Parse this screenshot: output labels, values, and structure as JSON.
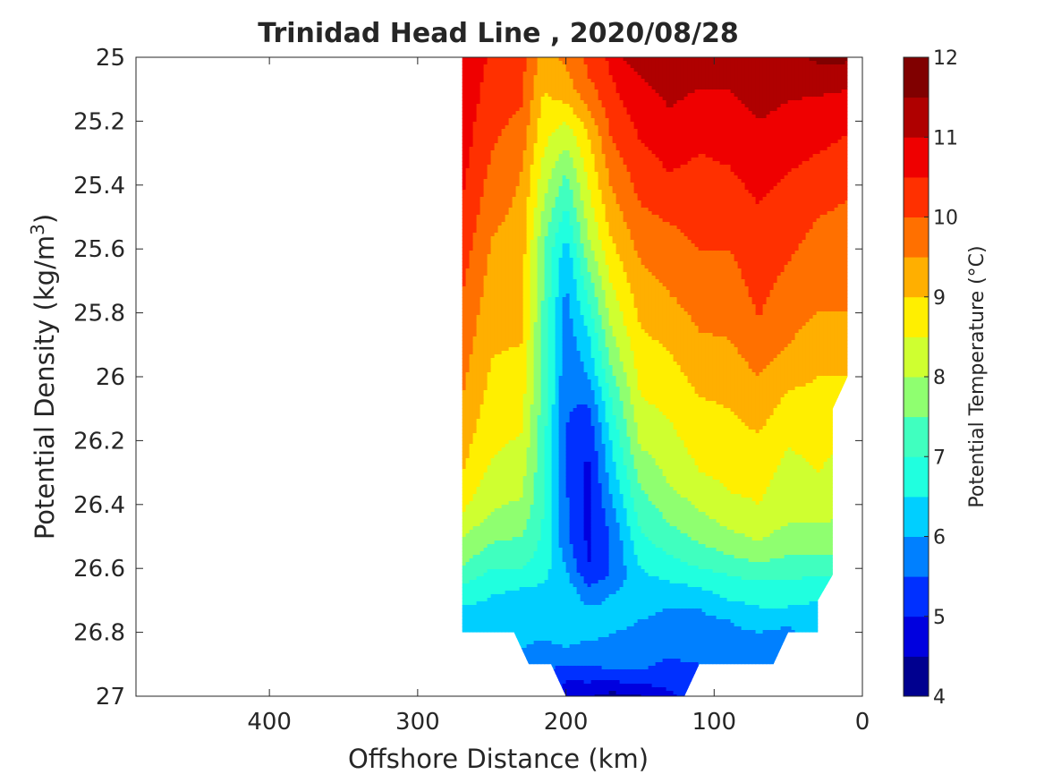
{
  "chart_data": {
    "type": "heatmap",
    "subtype": "filled-contour",
    "title": "Trinidad Head Line , 2020/08/28",
    "xlabel": "Offshore Distance (km)",
    "ylabel_main": "Potential Density (kg/m",
    "ylabel_sup": "3",
    "ylabel_end": ")",
    "colorbar_label": "Potential Temperature (°C)",
    "xlim": [
      490,
      0
    ],
    "x_reversed": true,
    "ylim": [
      25,
      27
    ],
    "y_reversed": true,
    "x_ticks": [
      400,
      300,
      200,
      100,
      0
    ],
    "x_tick_labels": [
      "400",
      "300",
      "200",
      "100",
      "0"
    ],
    "y_ticks": [
      25,
      25.2,
      25.4,
      25.6,
      25.8,
      26,
      26.2,
      26.4,
      26.6,
      26.8,
      27
    ],
    "y_tick_labels": [
      "25",
      "25.2",
      "25.4",
      "25.6",
      "25.8",
      "26",
      "26.2",
      "26.4",
      "26.6",
      "26.8",
      "27"
    ],
    "colorbar_range": [
      4,
      12
    ],
    "colorbar_ticks": [
      4,
      5,
      6,
      7,
      8,
      9,
      10,
      11,
      12
    ],
    "colorbar_tick_labels": [
      "4",
      "5",
      "6",
      "7",
      "8",
      "9",
      "10",
      "11",
      "12"
    ],
    "contour_levels": [
      4,
      4.5,
      5,
      5.5,
      6,
      6.5,
      7,
      7.5,
      8,
      8.5,
      9,
      9.5,
      10,
      10.5,
      11,
      11.5,
      12
    ],
    "colormap": [
      "#00008f",
      "#0000df",
      "#0030ff",
      "#0080ff",
      "#00cfff",
      "#20ffdf",
      "#40ffbf",
      "#8fff70",
      "#cfff30",
      "#ffef00",
      "#ffaf00",
      "#ff7000",
      "#ff3000",
      "#ef0000",
      "#af0000",
      "#800000"
    ],
    "data_extent_x_km": [
      270,
      10
    ],
    "data_extent_y": [
      25,
      27
    ],
    "profiles": [
      {
        "x": 270,
        "t": [
          [
            25,
            11.0
          ],
          [
            25.46,
            10.5
          ],
          [
            25.74,
            10.0
          ],
          [
            26.07,
            9.5
          ],
          [
            26.3,
            9.0
          ],
          [
            26.43,
            8.5
          ],
          [
            26.5,
            8.0
          ],
          [
            26.6,
            7.5
          ],
          [
            26.65,
            7.0
          ],
          [
            26.72,
            6.5
          ],
          [
            26.8,
            6.2
          ]
        ]
      },
      {
        "x": 250,
        "t": [
          [
            25,
            10.4
          ],
          [
            25.3,
            10.0
          ],
          [
            25.56,
            9.5
          ],
          [
            25.94,
            9.0
          ],
          [
            26.26,
            8.5
          ],
          [
            26.42,
            8.0
          ],
          [
            26.52,
            7.5
          ],
          [
            26.6,
            7.0
          ],
          [
            26.68,
            6.5
          ],
          [
            26.8,
            6.2
          ]
        ]
      },
      {
        "x": 230,
        "t": [
          [
            25,
            10.2
          ],
          [
            25.16,
            10.0
          ],
          [
            25.36,
            9.5
          ],
          [
            25.9,
            9.0
          ],
          [
            26.18,
            8.5
          ],
          [
            26.38,
            8.0
          ],
          [
            26.5,
            7.5
          ],
          [
            26.6,
            7.0
          ],
          [
            26.66,
            6.5
          ],
          [
            26.85,
            6.0
          ],
          [
            26.9,
            5.8
          ]
        ]
      },
      {
        "x": 215,
        "t": [
          [
            25,
            9.3
          ],
          [
            25.1,
            9.0
          ],
          [
            25.3,
            8.5
          ],
          [
            25.46,
            8.0
          ],
          [
            25.6,
            7.5
          ],
          [
            26.0,
            7.3
          ],
          [
            26.42,
            7.0
          ],
          [
            26.58,
            6.8
          ],
          [
            26.64,
            6.5
          ],
          [
            26.82,
            6.0
          ],
          [
            26.95,
            5.5
          ],
          [
            27,
            5.4
          ]
        ]
      },
      {
        "x": 200,
        "t": [
          [
            25,
            9.6
          ],
          [
            25.12,
            9.2
          ],
          [
            25.2,
            8.5
          ],
          [
            25.28,
            8.0
          ],
          [
            25.36,
            7.5
          ],
          [
            25.46,
            7.0
          ],
          [
            25.56,
            6.5
          ],
          [
            25.66,
            6.0
          ],
          [
            25.96,
            5.6
          ],
          [
            26.2,
            5.5
          ],
          [
            26.5,
            5.6
          ],
          [
            26.6,
            6.0
          ],
          [
            26.7,
            6.5
          ],
          [
            26.85,
            6.0
          ],
          [
            26.95,
            5.0
          ],
          [
            27,
            4.8
          ]
        ]
      },
      {
        "x": 185,
        "t": [
          [
            25,
            10.1
          ],
          [
            25.06,
            10.0
          ],
          [
            25.16,
            9.5
          ],
          [
            25.24,
            9.0
          ],
          [
            25.4,
            8.5
          ],
          [
            25.56,
            8.0
          ],
          [
            25.66,
            7.5
          ],
          [
            25.76,
            7.0
          ],
          [
            25.86,
            6.5
          ],
          [
            26.0,
            6.0
          ],
          [
            26.08,
            5.5
          ],
          [
            26.2,
            5.0
          ],
          [
            26.4,
            4.8
          ],
          [
            26.6,
            5.0
          ],
          [
            26.66,
            5.5
          ],
          [
            26.72,
            6.0
          ],
          [
            26.8,
            6.2
          ],
          [
            26.9,
            5.5
          ],
          [
            27,
            4.6
          ]
        ]
      },
      {
        "x": 170,
        "t": [
          [
            25,
            10.6
          ],
          [
            25.1,
            10.4
          ],
          [
            25.24,
            10.0
          ],
          [
            25.4,
            9.5
          ],
          [
            25.56,
            9.0
          ],
          [
            25.7,
            8.5
          ],
          [
            25.84,
            8.0
          ],
          [
            25.96,
            7.5
          ],
          [
            26.06,
            7.0
          ],
          [
            26.2,
            6.5
          ],
          [
            26.36,
            6.0
          ],
          [
            26.5,
            5.5
          ],
          [
            26.62,
            5.5
          ],
          [
            26.68,
            6.0
          ],
          [
            26.76,
            6.2
          ],
          [
            26.92,
            5.5
          ],
          [
            27,
            4.3
          ]
        ]
      },
      {
        "x": 150,
        "t": [
          [
            25,
            11.5
          ],
          [
            25.06,
            11.0
          ],
          [
            25.26,
            10.5
          ],
          [
            25.46,
            10.0
          ],
          [
            25.64,
            9.5
          ],
          [
            25.84,
            9.0
          ],
          [
            26.06,
            8.5
          ],
          [
            26.22,
            8.0
          ],
          [
            26.34,
            7.5
          ],
          [
            26.48,
            7.0
          ],
          [
            26.6,
            6.5
          ],
          [
            26.7,
            6.2
          ],
          [
            26.92,
            5.5
          ],
          [
            27,
            4.5
          ]
        ]
      },
      {
        "x": 130,
        "t": [
          [
            25,
            11.3
          ],
          [
            25.16,
            11.0
          ],
          [
            25.36,
            10.5
          ],
          [
            25.52,
            10.0
          ],
          [
            25.74,
            9.5
          ],
          [
            25.92,
            9.0
          ],
          [
            26.14,
            8.5
          ],
          [
            26.34,
            8.0
          ],
          [
            26.46,
            7.5
          ],
          [
            26.56,
            7.0
          ],
          [
            26.64,
            6.5
          ],
          [
            26.72,
            6.0
          ],
          [
            26.8,
            5.8
          ],
          [
            26.88,
            5.5
          ],
          [
            26.95,
            5.3
          ],
          [
            27,
            4.8
          ]
        ]
      },
      {
        "x": 110,
        "t": [
          [
            25,
            11.1
          ],
          [
            25.1,
            11.0
          ],
          [
            25.3,
            10.5
          ],
          [
            25.6,
            10.0
          ],
          [
            25.86,
            9.5
          ],
          [
            26.06,
            9.0
          ],
          [
            26.3,
            8.5
          ],
          [
            26.42,
            8.0
          ],
          [
            26.52,
            7.5
          ],
          [
            26.6,
            7.0
          ],
          [
            26.66,
            6.5
          ],
          [
            26.72,
            6.0
          ],
          [
            26.82,
            5.8
          ],
          [
            26.9,
            5.5
          ]
        ]
      },
      {
        "x": 90,
        "t": [
          [
            25,
            11.2
          ],
          [
            25.1,
            11.0
          ],
          [
            25.34,
            10.5
          ],
          [
            25.6,
            10.0
          ],
          [
            25.88,
            9.5
          ],
          [
            26.1,
            9.0
          ],
          [
            26.36,
            8.5
          ],
          [
            26.48,
            8.0
          ],
          [
            26.56,
            7.5
          ],
          [
            26.62,
            7.0
          ],
          [
            26.7,
            6.5
          ],
          [
            26.76,
            6.0
          ],
          [
            26.84,
            5.8
          ],
          [
            26.9,
            5.5
          ]
        ]
      },
      {
        "x": 70,
        "t": [
          [
            25,
            11.4
          ],
          [
            25.2,
            11.0
          ],
          [
            25.46,
            10.5
          ],
          [
            25.82,
            10.0
          ],
          [
            26.0,
            9.5
          ],
          [
            26.18,
            9.0
          ],
          [
            26.4,
            8.5
          ],
          [
            26.52,
            8.0
          ],
          [
            26.58,
            7.5
          ],
          [
            26.64,
            7.0
          ],
          [
            26.72,
            6.5
          ],
          [
            26.8,
            6.0
          ],
          [
            26.88,
            5.8
          ],
          [
            26.9,
            5.5
          ]
        ]
      },
      {
        "x": 50,
        "t": [
          [
            25,
            11.3
          ],
          [
            25.14,
            11.0
          ],
          [
            25.36,
            10.5
          ],
          [
            25.64,
            10.0
          ],
          [
            25.9,
            9.5
          ],
          [
            26.04,
            9.0
          ],
          [
            26.22,
            8.5
          ],
          [
            26.46,
            8.0
          ],
          [
            26.56,
            7.5
          ],
          [
            26.64,
            7.0
          ],
          [
            26.72,
            6.5
          ],
          [
            26.78,
            6.0
          ],
          [
            26.84,
            5.8
          ]
        ]
      },
      {
        "x": 30,
        "t": [
          [
            25,
            11.6
          ],
          [
            25.12,
            11.0
          ],
          [
            25.3,
            10.5
          ],
          [
            25.5,
            10.0
          ],
          [
            25.8,
            9.5
          ],
          [
            26.0,
            9.0
          ],
          [
            26.3,
            8.5
          ],
          [
            26.46,
            8.0
          ],
          [
            26.56,
            7.5
          ],
          [
            26.62,
            7.0
          ],
          [
            26.7,
            6.5
          ],
          [
            26.76,
            6.3
          ],
          [
            26.8,
            6.2
          ]
        ]
      },
      {
        "x": 10,
        "t": [
          [
            25,
            11.6
          ],
          [
            25.1,
            11.0
          ],
          [
            25.24,
            10.5
          ],
          [
            25.44,
            10.0
          ],
          [
            25.8,
            9.5
          ],
          [
            26.0,
            9.0
          ],
          [
            26.2,
            8.5
          ],
          [
            26.44,
            8.0
          ],
          [
            26.56,
            7.5
          ],
          [
            26.62,
            7.0
          ],
          [
            26.68,
            6.5
          ],
          [
            26.74,
            6.3
          ]
        ]
      }
    ],
    "bottom_boundary_km": [
      [
        270,
        26.8
      ],
      [
        235,
        26.8
      ],
      [
        225,
        26.9
      ],
      [
        210,
        26.9
      ],
      [
        200,
        27.0
      ],
      [
        120,
        27.0
      ],
      [
        110,
        26.9
      ],
      [
        60,
        26.9
      ],
      [
        50,
        26.8
      ],
      [
        30,
        26.8
      ],
      [
        30,
        26.7
      ],
      [
        20,
        26.62
      ],
      [
        20,
        26.1
      ],
      [
        10,
        26.0
      ]
    ]
  }
}
